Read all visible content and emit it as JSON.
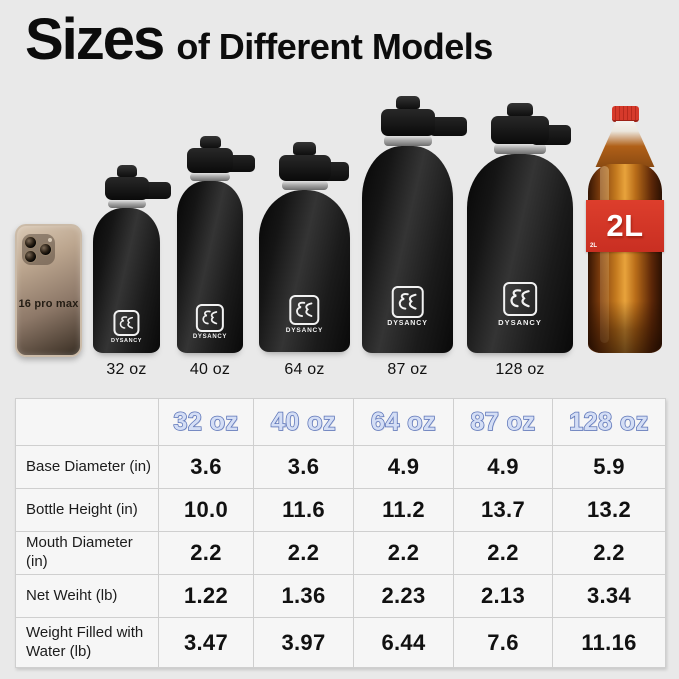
{
  "title": {
    "big": "Sizes",
    "rest": "of Different Models"
  },
  "scene": {
    "phone_label": "16 pro max",
    "brand": "DYSANCY",
    "bottle_labels": [
      "32 oz",
      "40 oz",
      "64 oz",
      "87 oz",
      "128 oz"
    ],
    "cola_label_big": "2L",
    "cola_label_small": "2L"
  },
  "icons": {
    "brand_logo": "dysancy-logo-mark",
    "phone_camera": "triple-camera-module"
  },
  "colors": {
    "page_background": "#e9e9e9",
    "table_background": "#f6f6f6",
    "table_grid": "#cfcfcf",
    "header_fill": "#d4def5",
    "header_outline": "#5c74b8",
    "bottle_black": "#1a1a1a",
    "cola_red": "#d6372a",
    "cola_amber": "#c47a1f",
    "phone_gold": "#bca68f"
  },
  "table": {
    "columns": [
      "32 oz",
      "40 oz",
      "64 oz",
      "87 oz",
      "128 oz"
    ],
    "rows": [
      {
        "label": "Base Diameter (in)",
        "values": [
          "3.6",
          "3.6",
          "4.9",
          "4.9",
          "5.9"
        ]
      },
      {
        "label": "Bottle Height (in)",
        "values": [
          "10.0",
          "11.6",
          "11.2",
          "13.7",
          "13.2"
        ]
      },
      {
        "label": "Mouth Diameter (in)",
        "values": [
          "2.2",
          "2.2",
          "2.2",
          "2.2",
          "2.2"
        ]
      },
      {
        "label": "Net Weiht (lb)",
        "values": [
          "1.22",
          "1.36",
          "2.23",
          "2.13",
          "3.34"
        ]
      },
      {
        "label": "Weight Filled with Water (lb)",
        "values": [
          "3.47",
          "3.97",
          "6.44",
          "7.6",
          "11.16"
        ]
      }
    ]
  }
}
